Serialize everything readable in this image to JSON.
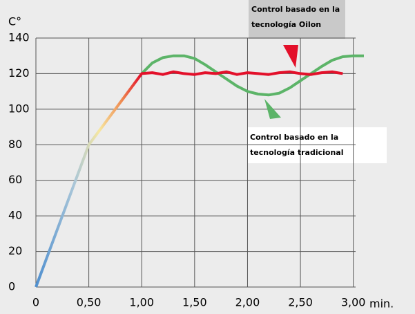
{
  "chart_data": {
    "type": "line",
    "y_label": "C°",
    "x_label": "min.",
    "xlim": [
      0,
      3.1
    ],
    "ylim": [
      0,
      140
    ],
    "xticks": [
      0,
      {
        "value": 0.5,
        "label": "0,50"
      },
      {
        "value": 1,
        "label": "1,00"
      },
      {
        "value": 1.5,
        "label": "1,50"
      },
      {
        "value": 2,
        "label": "2,00"
      },
      {
        "value": 2.5,
        "label": "2,50"
      },
      {
        "value": 3,
        "label": "3,00"
      }
    ],
    "yticks": [
      0,
      20,
      40,
      60,
      80,
      100,
      120,
      140
    ],
    "grid": true,
    "series": [
      {
        "name": [
          "Control basado en la",
          "tecnología Oilon"
        ],
        "color": "#e3102a",
        "x": [
          0,
          0.5,
          1.0,
          1.1,
          1.2,
          1.3,
          1.4,
          1.5,
          1.6,
          1.7,
          1.8,
          1.9,
          2.0,
          2.1,
          2.2,
          2.3,
          2.4,
          2.5,
          2.6,
          2.7,
          2.8,
          2.9
        ],
        "values": [
          0,
          80,
          120,
          120.5,
          119.5,
          121,
          120,
          119.5,
          120.5,
          120,
          121,
          119.5,
          120.5,
          120,
          119.5,
          120.5,
          121,
          120,
          119.5,
          120.5,
          121,
          120
        ]
      },
      {
        "name": [
          "Control basado en la",
          "tecnología tradicional"
        ],
        "color": "#5cb468",
        "x": [
          1.0,
          1.1,
          1.2,
          1.3,
          1.4,
          1.5,
          1.6,
          1.7,
          1.8,
          1.9,
          2.0,
          2.1,
          2.2,
          2.3,
          2.4,
          2.5,
          2.6,
          2.7,
          2.8,
          2.9,
          3.0,
          3.1
        ],
        "values": [
          120,
          126,
          129,
          130,
          130,
          128.5,
          125,
          121,
          117,
          113,
          110,
          108.5,
          108,
          109,
          112,
          116,
          120,
          124,
          127.5,
          129.5,
          130,
          130
        ]
      }
    ]
  }
}
